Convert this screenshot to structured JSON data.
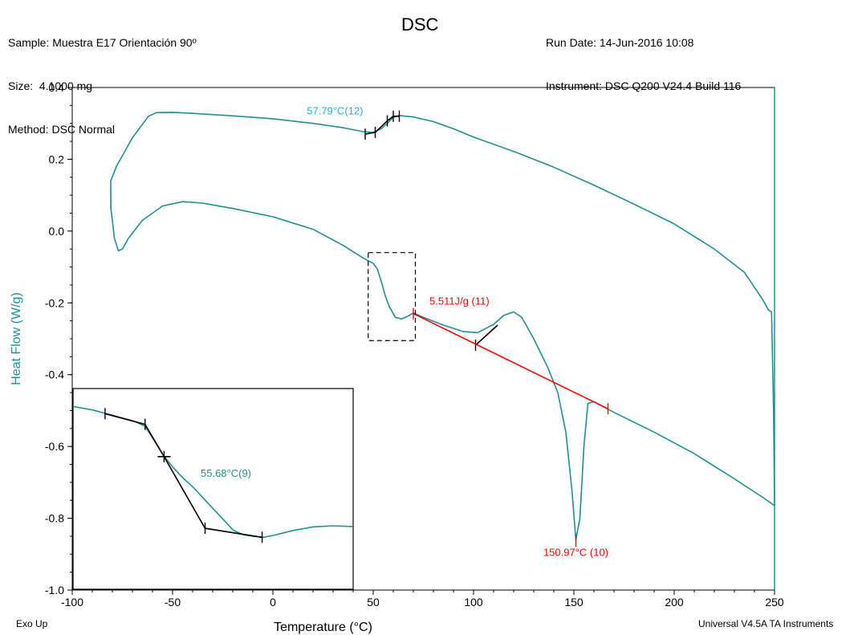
{
  "header": {
    "sample": "Sample: Muestra E17 Orientación 90º",
    "size": "Size:  4.1000 mg",
    "method": "Method: DSC Normal",
    "run_date": "Run Date: 14-Jun-2016 10:08",
    "instrument": "Instrument: DSC Q200 V24.4 Build 116"
  },
  "footer": {
    "exo": "Exo Up",
    "software": "Universal V4.5A TA Instruments"
  },
  "colors": {
    "curve": "#1f8f94",
    "axis_label": "#1f8f94",
    "annotation_cyan": "#1fb5d9",
    "annotation_red": "#ff0000",
    "tangent": "#000000"
  },
  "chart_data": {
    "type": "line",
    "title": "DSC",
    "xlabel": "Temperature (°C)",
    "ylabel": "Heat Flow (W/g)",
    "xlim": [
      -100,
      250
    ],
    "ylim": [
      -1.0,
      0.4
    ],
    "xticks": [
      -100,
      -50,
      0,
      50,
      100,
      150,
      200,
      250
    ],
    "xtick_labels": [
      "-100",
      "-50",
      "0",
      "50",
      "100",
      "150",
      "200",
      "250"
    ],
    "yticks": [
      0.4,
      0.2,
      0.0,
      -0.2,
      -0.4,
      -0.6,
      -0.8,
      -1.0
    ],
    "ytick_labels": [
      "0.4",
      "0.2",
      "0.0",
      "-0.2",
      "-0.4",
      "-0.6",
      "-0.8",
      "-1.0"
    ],
    "grid": false,
    "series": [
      {
        "values": [
          [
            -80.7,
            0.06
          ],
          [
            -80.8,
            0.1
          ],
          [
            -80.8,
            0.14
          ],
          [
            -78,
            0.18
          ],
          [
            -74,
            0.22
          ],
          [
            -70,
            0.26
          ],
          [
            -66,
            0.29
          ],
          [
            -62,
            0.32
          ],
          [
            -58,
            0.33
          ],
          [
            -50,
            0.331
          ],
          [
            -40,
            0.328
          ],
          [
            -20,
            0.321
          ],
          [
            0,
            0.313
          ],
          [
            20,
            0.3
          ],
          [
            35,
            0.288
          ],
          [
            45,
            0.277
          ],
          [
            50,
            0.275
          ],
          [
            54,
            0.285
          ],
          [
            57,
            0.3
          ],
          [
            60,
            0.317
          ],
          [
            63,
            0.322
          ],
          [
            70,
            0.318
          ],
          [
            80,
            0.305
          ],
          [
            90,
            0.285
          ],
          [
            100,
            0.262
          ],
          [
            120,
            0.222
          ],
          [
            140,
            0.178
          ],
          [
            160,
            0.128
          ],
          [
            180,
            0.075
          ],
          [
            200,
            0.02
          ],
          [
            220,
            -0.05
          ],
          [
            235,
            -0.115
          ],
          [
            244,
            -0.19
          ],
          [
            247,
            -0.22
          ],
          [
            248.5,
            -0.225
          ],
          [
            249.5,
            -0.5
          ],
          [
            250,
            -0.765
          ]
        ]
      },
      {
        "values": [
          [
            -80.9,
            0.07
          ],
          [
            -80,
            0.03
          ],
          [
            -79,
            -0.02
          ],
          [
            -77,
            -0.055
          ],
          [
            -75,
            -0.05
          ],
          [
            -72,
            -0.02
          ],
          [
            -65,
            0.03
          ],
          [
            -55,
            0.07
          ],
          [
            -45,
            0.082
          ],
          [
            -35,
            0.078
          ],
          [
            -20,
            0.063
          ],
          [
            0,
            0.04
          ],
          [
            20,
            0.005
          ],
          [
            35,
            -0.04
          ],
          [
            45,
            -0.075
          ],
          [
            50,
            -0.09
          ],
          [
            52,
            -0.105
          ],
          [
            54,
            -0.14
          ],
          [
            56,
            -0.18
          ],
          [
            58,
            -0.21
          ],
          [
            61,
            -0.24
          ],
          [
            64,
            -0.245
          ],
          [
            67,
            -0.238
          ],
          [
            70,
            -0.228
          ],
          [
            75,
            -0.24
          ],
          [
            85,
            -0.262
          ],
          [
            95,
            -0.28
          ],
          [
            102,
            -0.283
          ],
          [
            110,
            -0.26
          ],
          [
            115,
            -0.235
          ],
          [
            120,
            -0.225
          ],
          [
            124,
            -0.24
          ],
          [
            130,
            -0.3
          ],
          [
            137,
            -0.38
          ],
          [
            142,
            -0.45
          ],
          [
            146,
            -0.56
          ],
          [
            149,
            -0.72
          ],
          [
            151,
            -0.86
          ],
          [
            153,
            -0.8
          ],
          [
            155,
            -0.6
          ],
          [
            157,
            -0.48
          ],
          [
            160,
            -0.475
          ],
          [
            170,
            -0.505
          ],
          [
            190,
            -0.56
          ],
          [
            210,
            -0.62
          ],
          [
            230,
            -0.69
          ],
          [
            245,
            -0.745
          ],
          [
            250,
            -0.765
          ]
        ]
      }
    ],
    "annotations": [
      {
        "text": "57.79°C(12)",
        "x": 45,
        "y": 0.325,
        "color": "cyan"
      },
      {
        "text": "5.511J/g (11)",
        "x": 78,
        "y": -0.205,
        "color": "red"
      },
      {
        "text": "150.97°C (10)",
        "x": 151,
        "y": -0.905,
        "color": "red"
      }
    ],
    "integration_baseline": [
      [
        70,
        -0.23
      ],
      [
        167,
        -0.495
      ]
    ],
    "peak_marker": [
      151,
      -0.862
    ],
    "glass_tangents": [
      [
        [
          46,
          0.27
        ],
        [
          51,
          0.275
        ],
        [
          57,
          0.307
        ],
        [
          60,
          0.32
        ],
        [
          63,
          0.32
        ]
      ],
      [
        [
          101,
          -0.318
        ],
        [
          112,
          -0.262
        ]
      ]
    ],
    "zoom_box": {
      "x": [
        47.5,
        71
      ],
      "y": [
        -0.305,
        -0.06
      ]
    },
    "inset": {
      "annotation": "55.68°C(9)",
      "xlim": [
        -100,
        40
      ],
      "ylim": [
        -1.0,
        -0.44
      ],
      "curve": [
        [
          -100,
          -0.49
        ],
        [
          -90,
          -0.5
        ],
        [
          -80,
          -0.515
        ],
        [
          -70,
          -0.53
        ],
        [
          -64,
          -0.545
        ],
        [
          -60,
          -0.58
        ],
        [
          -55,
          -0.625
        ],
        [
          -50,
          -0.66
        ],
        [
          -45,
          -0.69
        ],
        [
          -40,
          -0.715
        ],
        [
          -35,
          -0.745
        ],
        [
          -30,
          -0.775
        ],
        [
          -25,
          -0.805
        ],
        [
          -20,
          -0.835
        ],
        [
          -15,
          -0.848
        ],
        [
          -10,
          -0.852
        ],
        [
          -5,
          -0.855
        ],
        [
          0,
          -0.85
        ],
        [
          10,
          -0.836
        ],
        [
          20,
          -0.826
        ],
        [
          30,
          -0.823
        ],
        [
          40,
          -0.825
        ]
      ],
      "tangent": [
        [
          -84,
          -0.51
        ],
        [
          -64,
          -0.54
        ],
        [
          -54.5,
          -0.63
        ],
        [
          -34,
          -0.83
        ],
        [
          -5.5,
          -0.855
        ]
      ]
    }
  }
}
